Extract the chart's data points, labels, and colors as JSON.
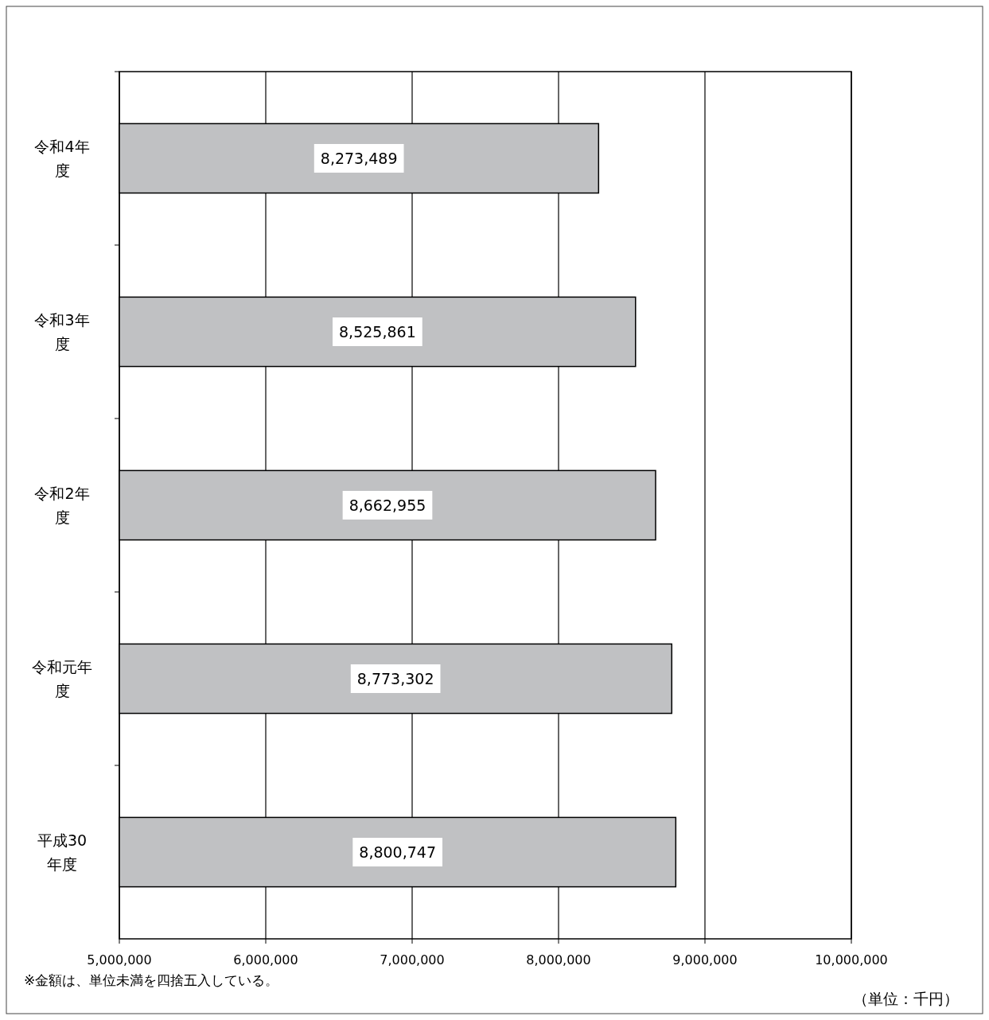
{
  "chart_data": {
    "type": "bar",
    "orientation": "horizontal",
    "categories": [
      "令和4年度",
      "令和3年度",
      "令和2年度",
      "令和元年度",
      "平成30年度"
    ],
    "values": [
      8273489,
      8525861,
      8662955,
      8773302,
      8800747
    ],
    "color": "#c0c1c3",
    "xlim": [
      5000000,
      10000000
    ],
    "xticks": [
      {
        "value": 5000000,
        "label": "5,000,000"
      },
      {
        "value": 6000000,
        "label": "6,000,000"
      },
      {
        "value": 7000000,
        "label": "7,000,000"
      },
      {
        "value": 8000000,
        "label": "8,000,000"
      },
      {
        "value": 9000000,
        "label": "9,000,000"
      },
      {
        "value": 10000000,
        "label": "10,000,000"
      }
    ],
    "value_labels": [
      "8,273,489",
      "8,525,861",
      "8,662,955",
      "8,773,302",
      "8,800,747"
    ],
    "grid": "x",
    "annotations": [
      "※金額は、単位未満を四捨五入している。",
      "（単位：千円）"
    ]
  }
}
